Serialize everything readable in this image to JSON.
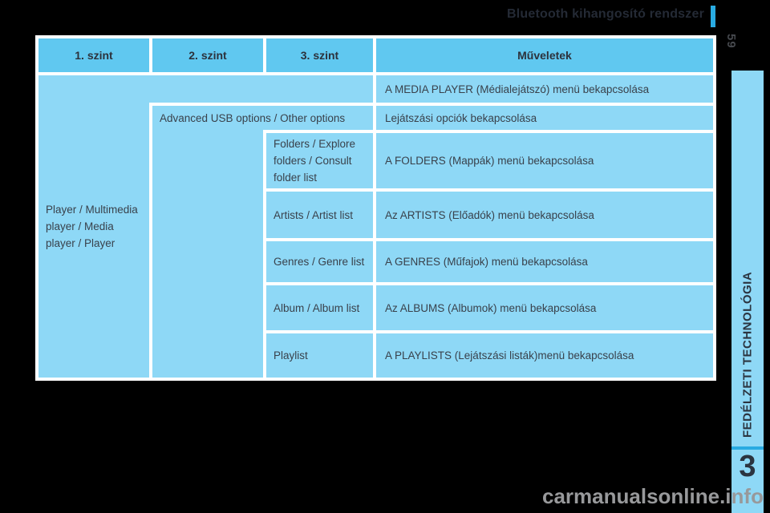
{
  "page": {
    "title": "Bluetooth kihangosító rendszer",
    "page_number": "59",
    "chapter_number": "3",
    "sidebar_label": "FEDÉLZETI TECHNOLÓGIA",
    "watermark": "carmanualsonline.info",
    "colors": {
      "background": "#000000",
      "accent_cyan": "#29abe2",
      "header_cell_blue": "#60c8f0",
      "body_cell_blue": "#8ed8f6",
      "table_gap_white": "#ffffff",
      "text_dark": "#39414b"
    }
  },
  "table": {
    "headers": [
      "1. szint",
      "2. szint",
      "3. szint",
      "Műveletek"
    ],
    "level1": "Player / Multimedia\nplayer / Media\nplayer / Player",
    "level2": "Advanced USB options / Other options",
    "rows": [
      {
        "level3": "",
        "operation": "A MEDIA PLAYER (Médialejátszó) menü bekapcsolása"
      },
      {
        "level3": "",
        "operation": "Lejátszási opciók bekapcsolása"
      },
      {
        "level3": "Folders / Explore\nfolders / Consult\nfolder list",
        "operation": "A FOLDERS (Mappák) menü bekapcsolása"
      },
      {
        "level3": "Artists / Artist list",
        "operation": "Az ARTISTS (Előadók) menü bekapcsolása"
      },
      {
        "level3": "Genres / Genre list",
        "operation": "A GENRES (Műfajok) menü bekapcsolása"
      },
      {
        "level3": "Album / Album list",
        "operation": "Az ALBUMS (Albumok) menü bekapcsolása"
      },
      {
        "level3": "Playlist",
        "operation": "A PLAYLISTS (Lejátszási listák)menü bekapcsolása"
      }
    ]
  }
}
